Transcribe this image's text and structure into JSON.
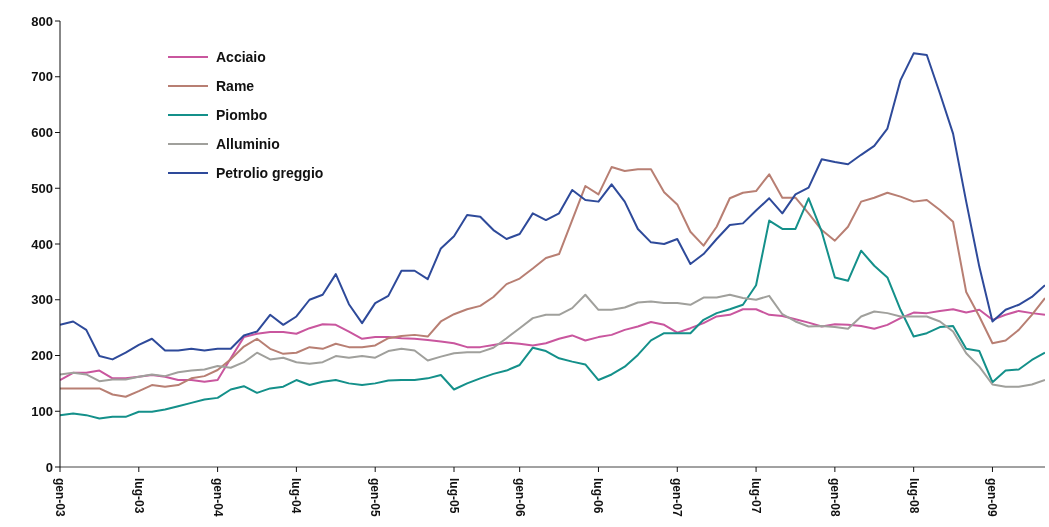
{
  "chart_data": {
    "type": "line",
    "categories": [
      "gen-03",
      null,
      null,
      null,
      null,
      null,
      "lug-03",
      null,
      null,
      null,
      null,
      null,
      "gen-04",
      null,
      null,
      null,
      null,
      null,
      "lug-04",
      null,
      null,
      null,
      null,
      null,
      "gen-05",
      null,
      null,
      null,
      null,
      null,
      "lug-05",
      null,
      null,
      null,
      null,
      "gen-06",
      null,
      null,
      null,
      null,
      null,
      "lug-06",
      null,
      null,
      null,
      null,
      null,
      "gen-07",
      null,
      null,
      null,
      null,
      null,
      "lug-07",
      null,
      null,
      null,
      null,
      null,
      "gen-08",
      null,
      null,
      null,
      null,
      null,
      "lug-08",
      null,
      null,
      null,
      null,
      null,
      "gen-09",
      null,
      null,
      null,
      null
    ],
    "series": [
      {
        "name": "Acciaio",
        "color": "#c9569e",
        "values": [
          156,
          169,
          169,
          173,
          159,
          159,
          162,
          165,
          162,
          156,
          156,
          153,
          156,
          195,
          233,
          239,
          242,
          242,
          239,
          249,
          256,
          255,
          243,
          230,
          233,
          233,
          231,
          230,
          228,
          225,
          222,
          215,
          215,
          219,
          223,
          221,
          218,
          222,
          230,
          236,
          227,
          233,
          237,
          246,
          252,
          260,
          255,
          241,
          249,
          258,
          270,
          273,
          283,
          283,
          273,
          271,
          265,
          259,
          252,
          256,
          255,
          253,
          248,
          255,
          267,
          277,
          276,
          280,
          283,
          277,
          282,
          264,
          273,
          280,
          276,
          273
        ]
      },
      {
        "name": "Rame",
        "color": "#b87f73",
        "values": [
          141,
          141,
          141,
          141,
          130,
          126,
          136,
          147,
          144,
          147,
          159,
          163,
          174,
          193,
          216,
          230,
          212,
          203,
          205,
          215,
          212,
          221,
          215,
          215,
          218,
          231,
          235,
          237,
          234,
          261,
          274,
          283,
          289,
          305,
          328,
          338,
          356,
          375,
          382,
          443,
          504,
          489,
          538,
          531,
          534,
          534,
          493,
          471,
          422,
          397,
          431,
          482,
          492,
          495,
          525,
          483,
          483,
          455,
          425,
          406,
          431,
          476,
          483,
          492,
          485,
          476,
          479,
          461,
          440,
          314,
          270,
          222,
          227,
          246,
          273,
          303
        ]
      },
      {
        "name": "Piombo",
        "color": "#14908a",
        "values": [
          93,
          96,
          93,
          87,
          90,
          90,
          99,
          99,
          103,
          109,
          115,
          121,
          124,
          139,
          145,
          133,
          141,
          144,
          156,
          147,
          153,
          156,
          150,
          147,
          150,
          155,
          156,
          156,
          159,
          165,
          139,
          150,
          159,
          167,
          173,
          183,
          214,
          208,
          195,
          189,
          184,
          156,
          166,
          180,
          201,
          227,
          240,
          240,
          240,
          264,
          276,
          283,
          291,
          326,
          442,
          427,
          427,
          482,
          422,
          340,
          334,
          388,
          361,
          340,
          282,
          234,
          240,
          251,
          253,
          212,
          208,
          152,
          173,
          175,
          192,
          205
        ]
      },
      {
        "name": "Alluminio",
        "color": "#a0a09c",
        "values": [
          166,
          169,
          166,
          154,
          157,
          157,
          162,
          166,
          163,
          170,
          173,
          175,
          181,
          178,
          188,
          205,
          193,
          196,
          188,
          185,
          188,
          199,
          196,
          199,
          196,
          208,
          212,
          209,
          191,
          198,
          204,
          206,
          206,
          214,
          231,
          249,
          267,
          273,
          273,
          285,
          309,
          282,
          282,
          286,
          295,
          297,
          294,
          294,
          291,
          304,
          304,
          309,
          303,
          300,
          307,
          274,
          261,
          252,
          253,
          251,
          248,
          270,
          279,
          276,
          270,
          270,
          270,
          261,
          243,
          204,
          180,
          148,
          144,
          144,
          148,
          156
        ]
      },
      {
        "name": "Petrolio greggio",
        "color": "#2e4a9a",
        "values": [
          255,
          261,
          246,
          199,
          193,
          205,
          219,
          230,
          209,
          209,
          212,
          209,
          212,
          212,
          236,
          243,
          273,
          255,
          270,
          300,
          309,
          346,
          292,
          258,
          294,
          307,
          352,
          352,
          337,
          392,
          414,
          452,
          449,
          425,
          409,
          418,
          455,
          443,
          455,
          497,
          479,
          476,
          507,
          476,
          427,
          403,
          400,
          409,
          364,
          382,
          409,
          434,
          437,
          460,
          482,
          455,
          489,
          501,
          552,
          547,
          543,
          560,
          576,
          607,
          694,
          742,
          739,
          670,
          598,
          476,
          359,
          261,
          282,
          291,
          305,
          326
        ]
      }
    ],
    "ylim": [
      0,
      800
    ],
    "yticks": [
      0,
      100,
      200,
      300,
      400,
      500,
      600,
      700,
      800
    ],
    "grid": false,
    "legend": "top left",
    "marker": "none",
    "line_style": "solid"
  }
}
